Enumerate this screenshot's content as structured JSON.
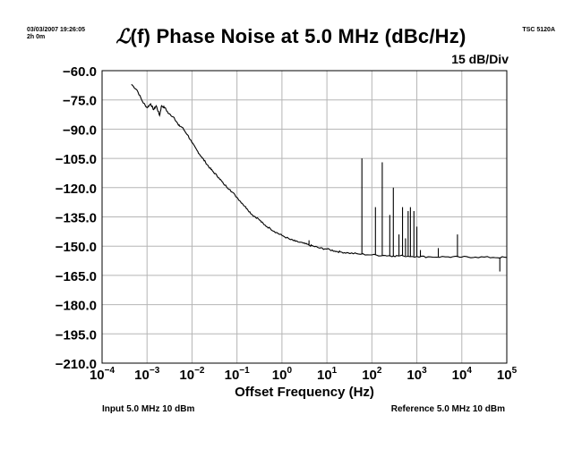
{
  "header": {
    "timestamp": "03/03/2007 19:26:05",
    "duration": "2h 0m",
    "model": "TSC 5120A",
    "title_symbol": "ℒ",
    "title_rest": "(f) Phase Noise at 5.0 MHz (dBc/Hz)",
    "scale": "15 dB/Div"
  },
  "footer": {
    "input": "Input 5.0 MHz 10 dBm",
    "reference": "Reference 5.0 MHz 10 dBm"
  },
  "chart_data": {
    "type": "line",
    "title": "ℒ(f) Phase Noise at 5.0 MHz (dBc/Hz)",
    "xlabel": "Offset Frequency (Hz)",
    "ylabel": "",
    "x_scale": "log",
    "xlim": [
      0.0001,
      100000
    ],
    "ylim": [
      -210,
      -60
    ],
    "grid": true,
    "x_ticks": [
      {
        "exp": -4,
        "label_base": "10",
        "label_exp": "−4"
      },
      {
        "exp": -3,
        "label_base": "10",
        "label_exp": "−3"
      },
      {
        "exp": -2,
        "label_base": "10",
        "label_exp": "−2"
      },
      {
        "exp": -1,
        "label_base": "10",
        "label_exp": "−1"
      },
      {
        "exp": 0,
        "label_base": "10",
        "label_exp": "0"
      },
      {
        "exp": 1,
        "label_base": "10",
        "label_exp": "1"
      },
      {
        "exp": 2,
        "label_base": "10",
        "label_exp": "2"
      },
      {
        "exp": 3,
        "label_base": "10",
        "label_exp": "3"
      },
      {
        "exp": 4,
        "label_base": "10",
        "label_exp": "4"
      },
      {
        "exp": 5,
        "label_base": "10",
        "label_exp": "5"
      }
    ],
    "y_ticks": [
      {
        "value": -60,
        "label": "−60.0"
      },
      {
        "value": -75,
        "label": "−75.0"
      },
      {
        "value": -90,
        "label": "−90.0"
      },
      {
        "value": -105,
        "label": "−105.0"
      },
      {
        "value": -120,
        "label": "−120.0"
      },
      {
        "value": -135,
        "label": "−135.0"
      },
      {
        "value": -150,
        "label": "−150.0"
      },
      {
        "value": -165,
        "label": "−165.0"
      },
      {
        "value": -180,
        "label": "−180.0"
      },
      {
        "value": -195,
        "label": "−195.0"
      },
      {
        "value": -210,
        "label": "−210.0"
      }
    ],
    "series": [
      {
        "points": [
          [
            0.00045,
            -67
          ],
          [
            0.0006,
            -70
          ],
          [
            0.0008,
            -76
          ],
          [
            0.001,
            -79
          ],
          [
            0.0012,
            -77
          ],
          [
            0.0014,
            -80
          ],
          [
            0.0016,
            -78
          ],
          [
            0.0019,
            -83
          ],
          [
            0.0021,
            -78
          ],
          [
            0.0025,
            -79
          ],
          [
            0.003,
            -82
          ],
          [
            0.004,
            -84
          ],
          [
            0.005,
            -88
          ],
          [
            0.006,
            -89
          ],
          [
            0.008,
            -93
          ],
          [
            0.01,
            -97
          ],
          [
            0.013,
            -101
          ],
          [
            0.016,
            -104
          ],
          [
            0.02,
            -107
          ],
          [
            0.025,
            -110
          ],
          [
            0.03,
            -112
          ],
          [
            0.04,
            -115
          ],
          [
            0.05,
            -118
          ],
          [
            0.07,
            -121
          ],
          [
            0.1,
            -125
          ],
          [
            0.13,
            -128
          ],
          [
            0.17,
            -131
          ],
          [
            0.22,
            -134
          ],
          [
            0.3,
            -136
          ],
          [
            0.4,
            -139
          ],
          [
            0.55,
            -141
          ],
          [
            0.75,
            -143
          ],
          [
            1,
            -144.5
          ],
          [
            1.5,
            -146.5
          ],
          [
            2,
            -147.5
          ],
          [
            3,
            -148.5
          ],
          [
            4,
            -149.5
          ],
          [
            5,
            -150
          ],
          [
            7,
            -151
          ],
          [
            10,
            -151.5
          ],
          [
            15,
            -152.5
          ],
          [
            20,
            -153
          ],
          [
            30,
            -153.5
          ],
          [
            50,
            -154
          ],
          [
            100,
            -154.5
          ],
          [
            200,
            -154.8
          ],
          [
            300,
            -155
          ],
          [
            500,
            -155
          ],
          [
            1000,
            -155.3
          ],
          [
            2000,
            -155.5
          ],
          [
            5000,
            -155.5
          ],
          [
            10000,
            -155.6
          ],
          [
            20000,
            -155.6
          ],
          [
            50000,
            -155.8
          ],
          [
            100000,
            -155.8
          ]
        ],
        "spurs": [
          [
            4,
            -147
          ],
          [
            60,
            -105
          ],
          [
            120,
            -130
          ],
          [
            170,
            -107
          ],
          [
            250,
            -134
          ],
          [
            300,
            -120
          ],
          [
            400,
            -144
          ],
          [
            480,
            -130
          ],
          [
            560,
            -146
          ],
          [
            640,
            -132
          ],
          [
            720,
            -130
          ],
          [
            860,
            -132
          ],
          [
            1000,
            -140
          ],
          [
            1200,
            -152
          ],
          [
            3000,
            -151
          ],
          [
            8000,
            -144
          ],
          [
            70000,
            -163
          ]
        ]
      }
    ]
  }
}
